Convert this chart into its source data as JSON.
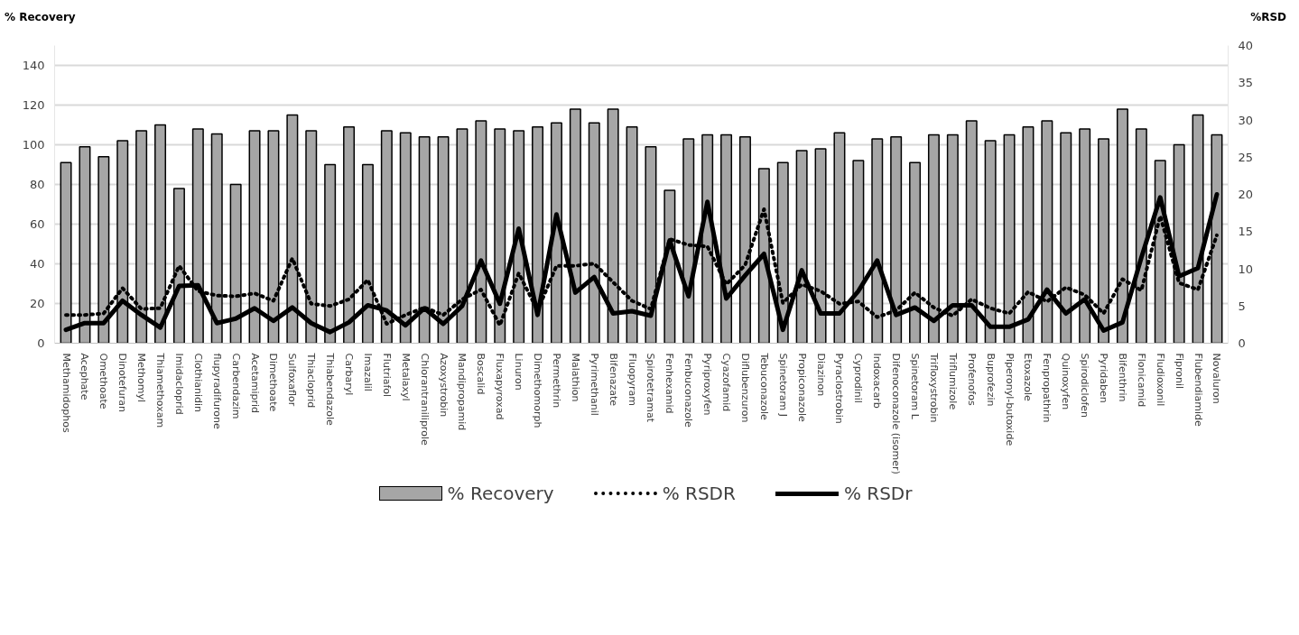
{
  "chart_data": {
    "type": "bar",
    "ylabel": "% Recovery",
    "y2label": "%RSD",
    "categories": [
      "Methamidophos",
      "Acephate",
      "Omethoate",
      "Dinotefuran",
      "Methomyl",
      "Thiamethoxam",
      "Imidacloprid",
      "Clothianidin",
      "flupyradifurone",
      "Carbendazim",
      "Acetamiprid",
      "Dimethoate",
      "Sulfoxaflor",
      "Thiacloprid",
      "Thiabendazole",
      "Carbaryl",
      "Imazalil",
      "Flutriafol",
      "Metalaxyl",
      "Chlorantraniliprole",
      "Azoxystrobin",
      "Mandipropamid",
      "Boscalid",
      "Fluxapyroxad",
      "Linuron",
      "Dimethomorph",
      "Permethrin",
      "Malathion",
      "Pyrimethanil",
      "Bifenazate",
      "Fluopyram",
      "Spirotetramat",
      "Fenhexamid",
      "Fenbuconazole",
      "Pyriproxyfen",
      "Cyazofamid",
      "Diflubenzuron",
      "Tebuconazole",
      "Spinetoram J",
      "Propiconazole",
      "Diazinon",
      "Pyraclostrobin",
      "Cyprodinil",
      "Indoxacarb",
      "Difenoconazole (isomer)",
      "Spinetoram L",
      "Trifloxystrobin",
      "Triflumizole",
      "Profenofos",
      "Buprofezin",
      "Piperonyl-butoxide",
      "Etoxazole",
      "Fenpropathrin",
      "Quinoxyfen",
      "Spirodiclofen",
      "Pyridaben",
      "Bifenthrin",
      "Flonicamid",
      "Fludioxonil",
      "Fipronil",
      "Flubendiamide",
      "Novaluron"
    ],
    "series": [
      {
        "name": "% Recovery",
        "color": "#a6a6a6",
        "values": [
          91,
          99,
          94,
          102,
          107,
          110,
          78,
          108,
          105.5,
          80,
          107,
          107,
          115,
          107,
          90,
          109,
          90,
          107,
          106,
          104,
          104,
          108,
          112,
          108,
          107,
          109,
          111,
          118,
          111,
          118,
          109,
          99,
          77,
          103,
          105,
          105,
          104,
          88,
          91,
          97,
          98,
          106,
          92,
          103,
          104,
          91,
          105,
          105,
          112,
          102,
          105,
          109,
          112,
          106,
          108,
          103,
          118,
          108,
          92,
          100,
          115,
          105
        ]
      },
      {
        "name": "% RSDR",
        "type": "line",
        "axis": "y2",
        "line_style": "dotted",
        "color": "#000000",
        "values": [
          3.8,
          3.8,
          4.0,
          7.4,
          4.6,
          4.7,
          10.4,
          7.0,
          6.4,
          6.3,
          6.7,
          5.7,
          11.4,
          5.3,
          5.0,
          5.9,
          8.5,
          2.6,
          3.8,
          4.8,
          3.8,
          5.9,
          7.2,
          2.4,
          9.4,
          4.4,
          10.4,
          10.4,
          10.7,
          8.2,
          5.7,
          4.6,
          14.0,
          13.2,
          13.0,
          7.9,
          10.5,
          18.0,
          5.4,
          7.9,
          7.0,
          5.3,
          5.6,
          3.5,
          4.4,
          6.8,
          4.8,
          3.7,
          5.9,
          4.7,
          4.0,
          6.9,
          5.6,
          7.5,
          6.5,
          4.0,
          8.6,
          7.1,
          17.1,
          8.1,
          7.2,
          14.5
        ]
      },
      {
        "name": "% RSDr",
        "type": "line",
        "axis": "y2",
        "line_style": "solid",
        "color": "#000000",
        "values": [
          1.8,
          2.7,
          2.7,
          5.7,
          3.8,
          2.1,
          7.7,
          7.8,
          2.7,
          3.3,
          4.7,
          3.0,
          4.8,
          2.7,
          1.5,
          2.8,
          5.1,
          4.4,
          2.4,
          4.7,
          2.6,
          5.0,
          11.1,
          5.3,
          15.4,
          3.8,
          17.3,
          6.8,
          8.9,
          4.0,
          4.3,
          3.7,
          13.8,
          6.3,
          19.0,
          6.0,
          9.1,
          12.0,
          1.8,
          9.8,
          4.0,
          4.0,
          7.0,
          11.1,
          3.8,
          4.8,
          3.0,
          5.1,
          5.1,
          2.2,
          2.2,
          3.2,
          7.2,
          4.0,
          5.9,
          1.7,
          2.8,
          11.5,
          19.6,
          9.0,
          10.1,
          20.0
        ]
      }
    ],
    "ylim": [
      0,
      150
    ],
    "yticks": [
      0,
      20,
      40,
      60,
      80,
      100,
      120,
      140
    ],
    "y2lim": [
      0,
      40
    ],
    "y2ticks": [
      0,
      5,
      10,
      15,
      20,
      25,
      30,
      35,
      40
    ],
    "grid": "y",
    "legend": "bottom"
  }
}
